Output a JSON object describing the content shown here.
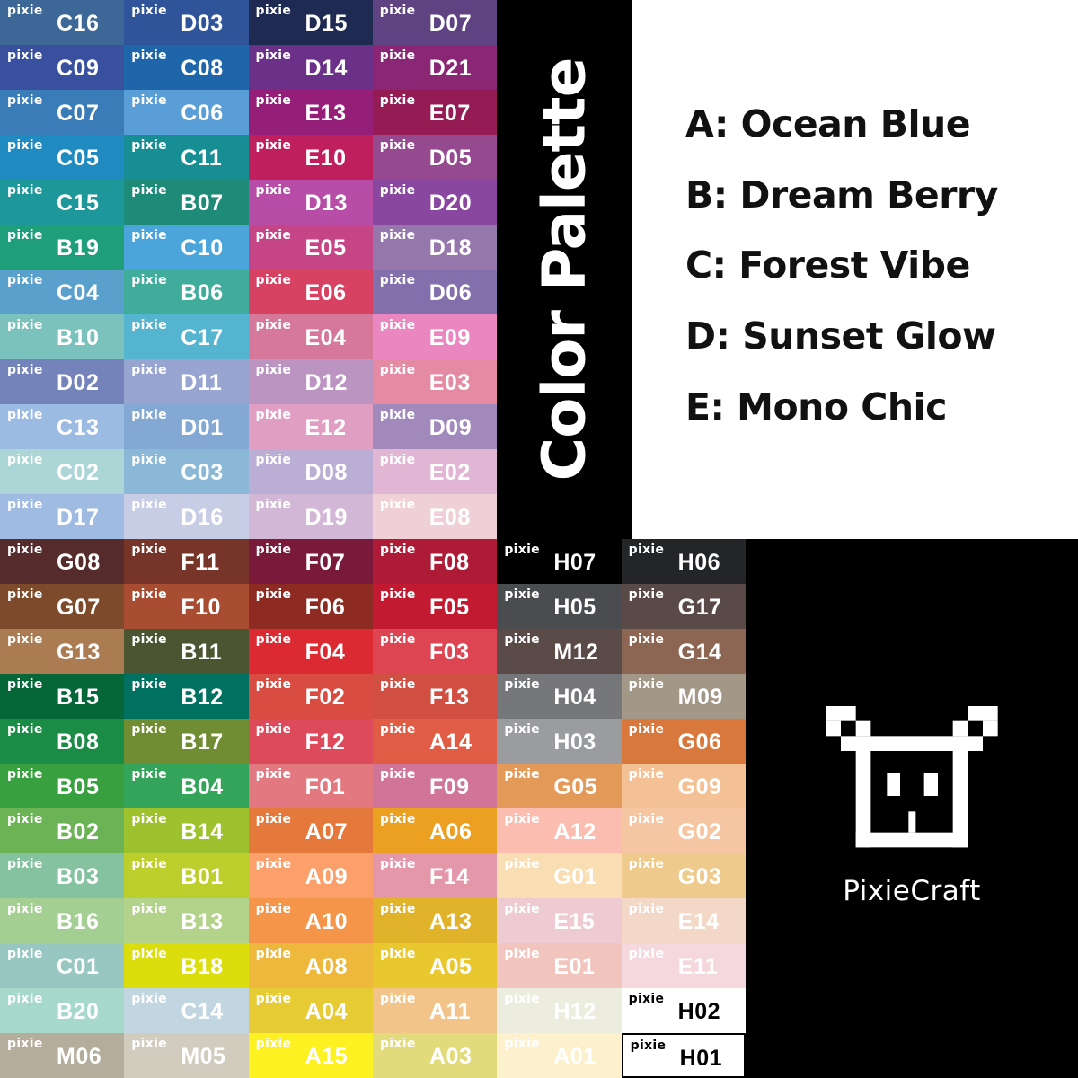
{
  "brand_label": "pixie",
  "title": "Color Palette",
  "legend": [
    "A: Ocean Blue",
    "B: Dream Berry",
    "C: Forest Vibe",
    "D: Sunset Glow",
    "E: Mono Chic"
  ],
  "logo_name": "PixieCraft",
  "top_block": [
    {
      "code": "C16",
      "color": "#3d6797"
    },
    {
      "code": "D03",
      "color": "#2f5499"
    },
    {
      "code": "D15",
      "color": "#1e2a52"
    },
    {
      "code": "D07",
      "color": "#5e4281"
    },
    {
      "code": "C09",
      "color": "#38509d"
    },
    {
      "code": "C08",
      "color": "#1f65aa"
    },
    {
      "code": "D14",
      "color": "#6b3087"
    },
    {
      "code": "D21",
      "color": "#8a2774"
    },
    {
      "code": "C07",
      "color": "#3a7cb8"
    },
    {
      "code": "C06",
      "color": "#5a9ed8"
    },
    {
      "code": "E13",
      "color": "#951e78"
    },
    {
      "code": "E07",
      "color": "#951b55"
    },
    {
      "code": "C05",
      "color": "#1f8bc0"
    },
    {
      "code": "C11",
      "color": "#178e93"
    },
    {
      "code": "E10",
      "color": "#bf1f5c"
    },
    {
      "code": "D05",
      "color": "#954a8f"
    },
    {
      "code": "C15",
      "color": "#1d979a"
    },
    {
      "code": "B07",
      "color": "#1e8a78"
    },
    {
      "code": "D13",
      "color": "#b84da8"
    },
    {
      "code": "D20",
      "color": "#8a479f"
    },
    {
      "code": "B19",
      "color": "#1e9e79"
    },
    {
      "code": "C10",
      "color": "#4ba5db"
    },
    {
      "code": "E05",
      "color": "#c64586"
    },
    {
      "code": "D18",
      "color": "#9577ac"
    },
    {
      "code": "C04",
      "color": "#5aa0cc"
    },
    {
      "code": "B06",
      "color": "#40ad9c"
    },
    {
      "code": "E06",
      "color": "#d74263"
    },
    {
      "code": "D06",
      "color": "#836fab"
    },
    {
      "code": "B10",
      "color": "#7bc2bd"
    },
    {
      "code": "C17",
      "color": "#55b4d0"
    },
    {
      "code": "E04",
      "color": "#d6789a"
    },
    {
      "code": "E09",
      "color": "#ea87c0"
    },
    {
      "code": "D02",
      "color": "#7484bb"
    },
    {
      "code": "D11",
      "color": "#97a5d0"
    },
    {
      "code": "D12",
      "color": "#bb94c2"
    },
    {
      "code": "E03",
      "color": "#e48aa3"
    },
    {
      "code": "C13",
      "color": "#9cbbe3"
    },
    {
      "code": "D01",
      "color": "#82a8d3"
    },
    {
      "code": "E12",
      "color": "#e09fc2"
    },
    {
      "code": "D09",
      "color": "#a18abb"
    },
    {
      "code": "C02",
      "color": "#acd5d5"
    },
    {
      "code": "C03",
      "color": "#8ab8d6"
    },
    {
      "code": "D08",
      "color": "#bbaed4"
    },
    {
      "code": "E02",
      "color": "#e1b6d4"
    },
    {
      "code": "D17",
      "color": "#9fbbe1"
    },
    {
      "code": "D16",
      "color": "#c7cde4"
    },
    {
      "code": "D19",
      "color": "#d2b7d6"
    },
    {
      "code": "E08",
      "color": "#efd0d6"
    }
  ],
  "bottom_block": [
    {
      "code": "G08",
      "color": "#552b2b"
    },
    {
      "code": "F11",
      "color": "#763528"
    },
    {
      "code": "F07",
      "color": "#7a1a3a"
    },
    {
      "code": "F08",
      "color": "#ad1b37"
    },
    {
      "code": "H07",
      "color": "#000000"
    },
    {
      "code": "H06",
      "color": "#232528"
    },
    {
      "code": "G07",
      "color": "#7d4b2b"
    },
    {
      "code": "F10",
      "color": "#a84d31"
    },
    {
      "code": "F06",
      "color": "#8d2a22"
    },
    {
      "code": "F05",
      "color": "#c21a30"
    },
    {
      "code": "H05",
      "color": "#4b4c50"
    },
    {
      "code": "G17",
      "color": "#594a48"
    },
    {
      "code": "G13",
      "color": "#ab7c52"
    },
    {
      "code": "B11",
      "color": "#4b5532"
    },
    {
      "code": "F04",
      "color": "#db2a31"
    },
    {
      "code": "F03",
      "color": "#de4552"
    },
    {
      "code": "M12",
      "color": "#5a4a48"
    },
    {
      "code": "G14",
      "color": "#8d6553"
    },
    {
      "code": "B15",
      "color": "#056738"
    },
    {
      "code": "B12",
      "color": "#007160"
    },
    {
      "code": "F02",
      "color": "#d94c41"
    },
    {
      "code": "F13",
      "color": "#d04f42"
    },
    {
      "code": "H04",
      "color": "#76777b"
    },
    {
      "code": "M09",
      "color": "#a39888"
    },
    {
      "code": "B08",
      "color": "#1b8c45"
    },
    {
      "code": "B17",
      "color": "#718d33"
    },
    {
      "code": "F12",
      "color": "#dc4a5c"
    },
    {
      "code": "A14",
      "color": "#e05c45"
    },
    {
      "code": "H03",
      "color": "#9b9ca0"
    },
    {
      "code": "G06",
      "color": "#d9783d"
    },
    {
      "code": "B05",
      "color": "#39a03f"
    },
    {
      "code": "B04",
      "color": "#35a45b"
    },
    {
      "code": "F01",
      "color": "#e27880"
    },
    {
      "code": "F09",
      "color": "#d07598"
    },
    {
      "code": "G05",
      "color": "#e39a58"
    },
    {
      "code": "G09",
      "color": "#f3c195"
    },
    {
      "code": "B02",
      "color": "#6cb356"
    },
    {
      "code": "B14",
      "color": "#9ec22d"
    },
    {
      "code": "A07",
      "color": "#e5793b"
    },
    {
      "code": "A06",
      "color": "#eba022"
    },
    {
      "code": "A12",
      "color": "#fbbdb0"
    },
    {
      "code": "G02",
      "color": "#f6c6a2"
    },
    {
      "code": "B03",
      "color": "#85c2a0"
    },
    {
      "code": "B01",
      "color": "#bccf2d"
    },
    {
      "code": "A09",
      "color": "#fba06b"
    },
    {
      "code": "F14",
      "color": "#e497a8"
    },
    {
      "code": "G01",
      "color": "#f9ddb3"
    },
    {
      "code": "G03",
      "color": "#efca8d"
    },
    {
      "code": "B16",
      "color": "#a4cf92"
    },
    {
      "code": "B13",
      "color": "#b4d38a"
    },
    {
      "code": "A10",
      "color": "#f4954a"
    },
    {
      "code": "A13",
      "color": "#e0b32b"
    },
    {
      "code": "E15",
      "color": "#eecbd2"
    },
    {
      "code": "E14",
      "color": "#f3d8c7"
    },
    {
      "code": "C01",
      "color": "#98c7c2"
    },
    {
      "code": "B18",
      "color": "#dbdd0d"
    },
    {
      "code": "A08",
      "color": "#edb83c"
    },
    {
      "code": "A05",
      "color": "#e9c72f"
    },
    {
      "code": "E01",
      "color": "#f1c5be"
    },
    {
      "code": "E11",
      "color": "#f5d8dd"
    },
    {
      "code": "B20",
      "color": "#a6d8cc"
    },
    {
      "code": "C14",
      "color": "#c2d6e2"
    },
    {
      "code": "A04",
      "color": "#e7cb35"
    },
    {
      "code": "A11",
      "color": "#f2c48a"
    },
    {
      "code": "H12",
      "color": "#ededdf"
    },
    {
      "code": "H02",
      "color": "#ffffff",
      "text_color": "#000000"
    },
    {
      "code": "M06",
      "color": "#b5ad9b"
    },
    {
      "code": "M05",
      "color": "#d2ccbe"
    },
    {
      "code": "A15",
      "color": "#fef122"
    },
    {
      "code": "A03",
      "color": "#e2db7b"
    },
    {
      "code": "A01",
      "color": "#fdf1cd"
    },
    {
      "code": "H01",
      "color": "#ffffff",
      "text_color": "#000000",
      "border": "#000000"
    }
  ]
}
